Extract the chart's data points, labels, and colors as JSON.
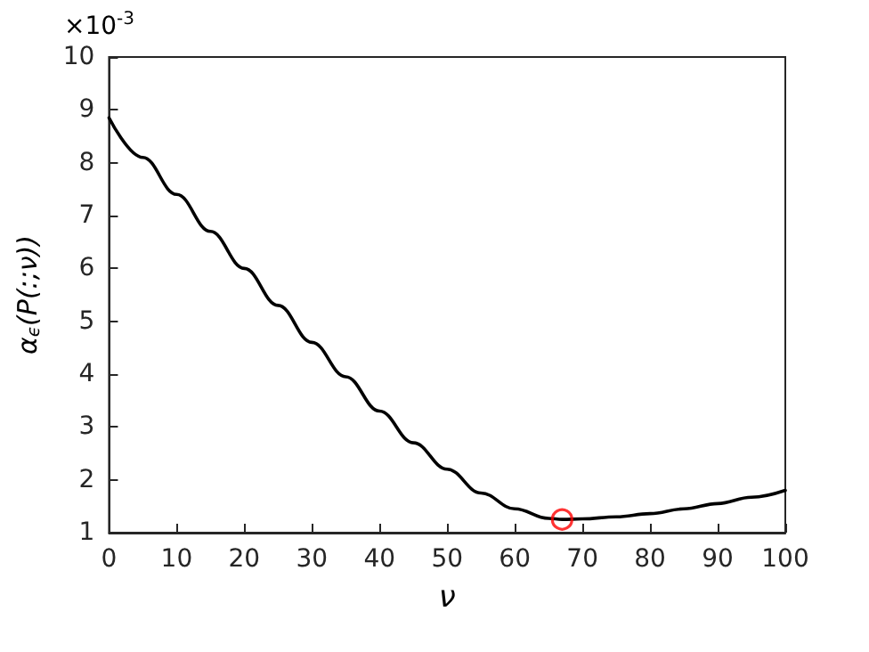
{
  "chart_data": {
    "type": "line",
    "xlabel": "ν",
    "ylabel": "α$_{ϵ}$(P(:;ν))",
    "annotations": [
      "×10$^{-3}$"
    ],
    "xlim": [
      0,
      100
    ],
    "xticks": [
      0,
      10,
      20,
      30,
      40,
      50,
      60,
      70,
      80,
      90,
      100
    ],
    "ylim": [
      1,
      10
    ],
    "yticks": [
      1,
      2,
      3,
      4,
      5,
      6,
      7,
      8,
      9,
      10
    ],
    "grid": false,
    "series": [
      {
        "color": "#000000",
        "marker": "none",
        "x": [
          0,
          5,
          10,
          15,
          20,
          25,
          30,
          35,
          40,
          45,
          50,
          55,
          60,
          65,
          67,
          70,
          75,
          80,
          85,
          90,
          95,
          100
        ],
        "values": [
          8.85,
          8.1,
          7.4,
          6.7,
          6.0,
          5.3,
          4.6,
          3.95,
          3.3,
          2.7,
          2.2,
          1.75,
          1.45,
          1.27,
          1.25,
          1.26,
          1.3,
          1.36,
          1.45,
          1.55,
          1.67,
          1.8
        ]
      },
      {
        "type": "scatter",
        "color": "#ff0000",
        "marker": "circle",
        "x": [
          67
        ],
        "values": [
          1.25
        ]
      }
    ]
  }
}
